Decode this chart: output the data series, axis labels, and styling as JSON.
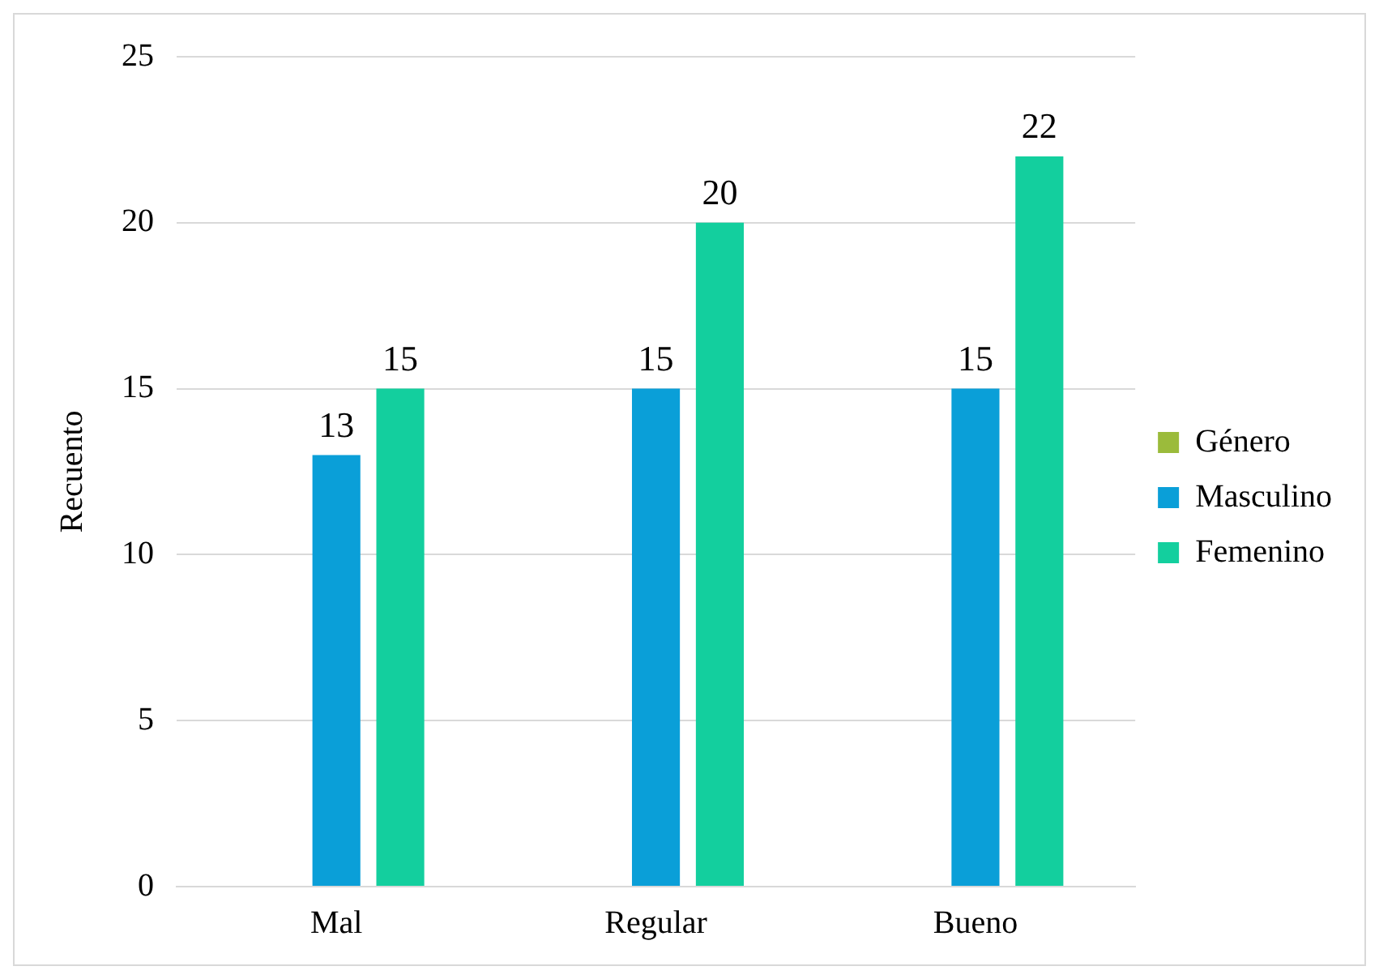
{
  "chart_data": {
    "type": "bar",
    "ylabel": "Recuento",
    "categories": [
      "Mal",
      "Regular",
      "Bueno"
    ],
    "series": [
      {
        "name": "Género",
        "color": "#9bbb3b",
        "values": [
          null,
          null,
          null
        ]
      },
      {
        "name": "Masculino",
        "color": "#0a9fd8",
        "values": [
          13,
          15,
          15
        ]
      },
      {
        "name": "Femenino",
        "color": "#13cf9e",
        "values": [
          15,
          20,
          22
        ]
      }
    ],
    "ylim": [
      0,
      25
    ],
    "yticks": [
      0,
      5,
      10,
      15,
      20,
      25
    ],
    "grid": "y",
    "legend": "right",
    "data_labels": true
  }
}
